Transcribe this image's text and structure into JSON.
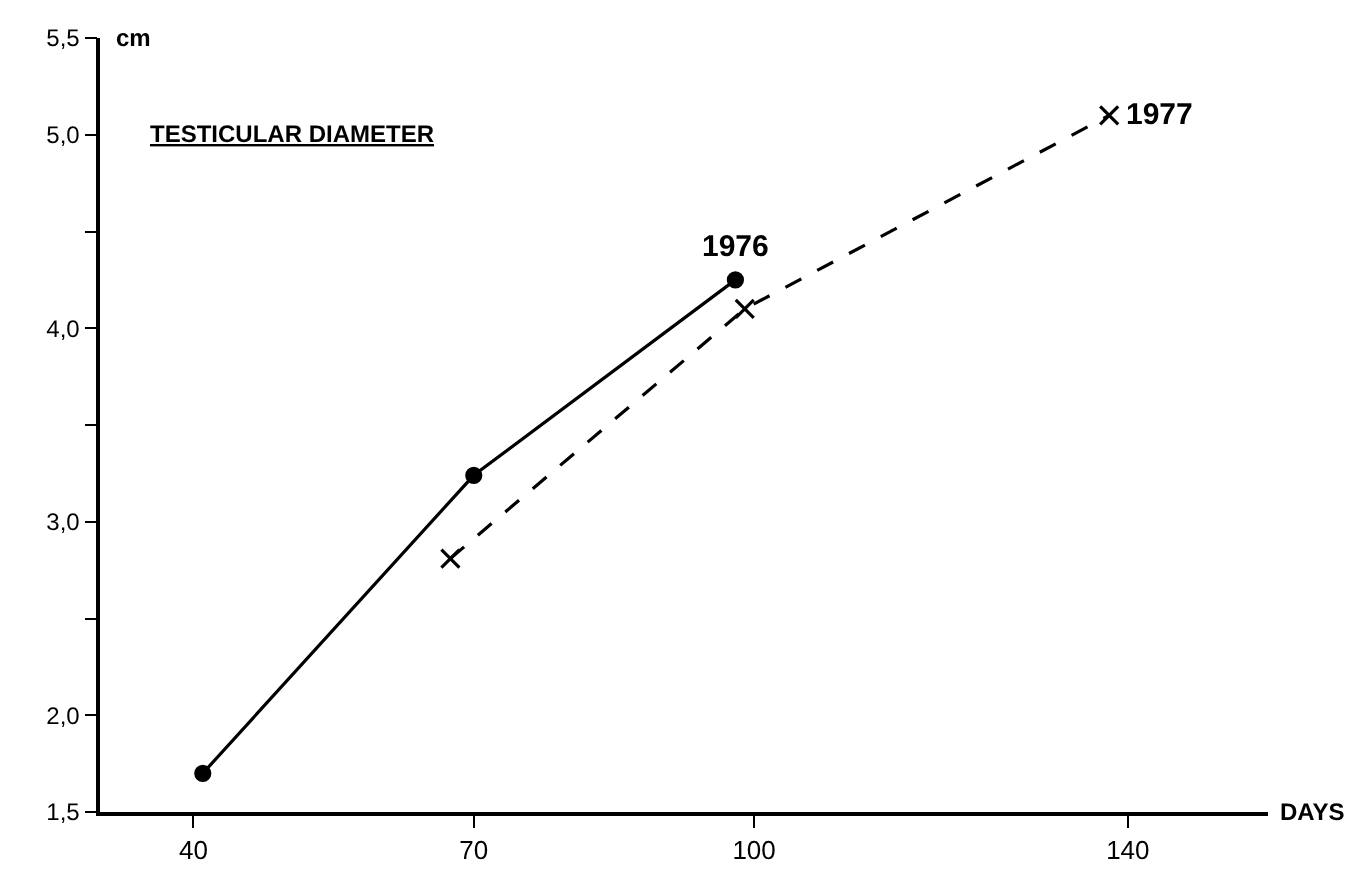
{
  "chart_data": {
    "type": "line",
    "title": "TESTICULAR DIAMETER",
    "xlabel": "DAYS",
    "ylabel": "cm",
    "xlim": [
      30,
      155
    ],
    "xticks": [
      40,
      70,
      100,
      140
    ],
    "ylim": [
      1.5,
      5.5
    ],
    "yticks": [
      {
        "value": 1.5,
        "label": "1,5"
      },
      {
        "value": 2,
        "label": "2,0"
      },
      {
        "value": 2.5,
        "label": null
      },
      {
        "value": 3,
        "label": "3,0"
      },
      {
        "value": 3.5,
        "label": null
      },
      {
        "value": 4,
        "label": "4,0"
      },
      {
        "value": 4.5,
        "label": null
      },
      {
        "value": 5,
        "label": "5,0"
      },
      {
        "value": 5.5,
        "label": "5,5"
      }
    ],
    "legend": false,
    "series": [
      {
        "name": "1976",
        "color": "#000000",
        "marker": "circle",
        "line_style": "solid",
        "x": [
          41,
          70,
          98
        ],
        "values": [
          1.7,
          3.24,
          4.25
        ]
      },
      {
        "name": "1977",
        "color": "#000000",
        "marker": "cross",
        "line_style": "dashed",
        "x": [
          67.5,
          99,
          138
        ],
        "values": [
          2.81,
          4.1,
          5.1
        ]
      }
    ]
  }
}
